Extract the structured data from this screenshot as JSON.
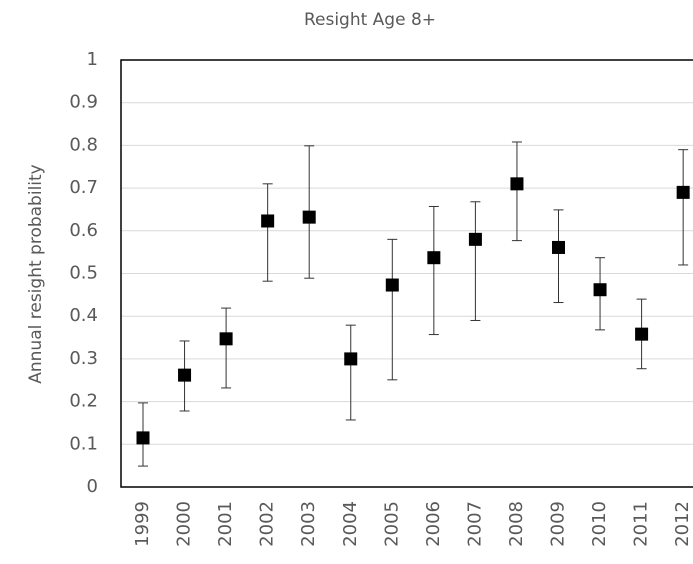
{
  "chart_data": {
    "type": "errorbar",
    "title": "Resight Age 8+",
    "y_label": "Annual resight probability",
    "categories": [
      "1999",
      "2000",
      "2001",
      "2002",
      "2003",
      "2004",
      "2005",
      "2006",
      "2007",
      "2008",
      "2009",
      "2010",
      "2011",
      "2012"
    ],
    "values": [
      0.115,
      0.262,
      0.347,
      0.623,
      0.632,
      0.3,
      0.473,
      0.537,
      0.58,
      0.71,
      0.561,
      0.462,
      0.358,
      0.69
    ],
    "lower": [
      0.049,
      0.178,
      0.232,
      0.482,
      0.489,
      0.157,
      0.251,
      0.357,
      0.39,
      0.577,
      0.432,
      0.368,
      0.277,
      0.52
    ],
    "upper": [
      0.197,
      0.342,
      0.419,
      0.71,
      0.799,
      0.379,
      0.58,
      0.657,
      0.668,
      0.808,
      0.649,
      0.537,
      0.44,
      0.79
    ],
    "color": "#000000",
    "ylim": [
      0,
      1
    ],
    "yticks": [
      0,
      0.1,
      0.2,
      0.3,
      0.4,
      0.5,
      0.6,
      0.7,
      0.8,
      0.9,
      1
    ],
    "grid": true
  }
}
